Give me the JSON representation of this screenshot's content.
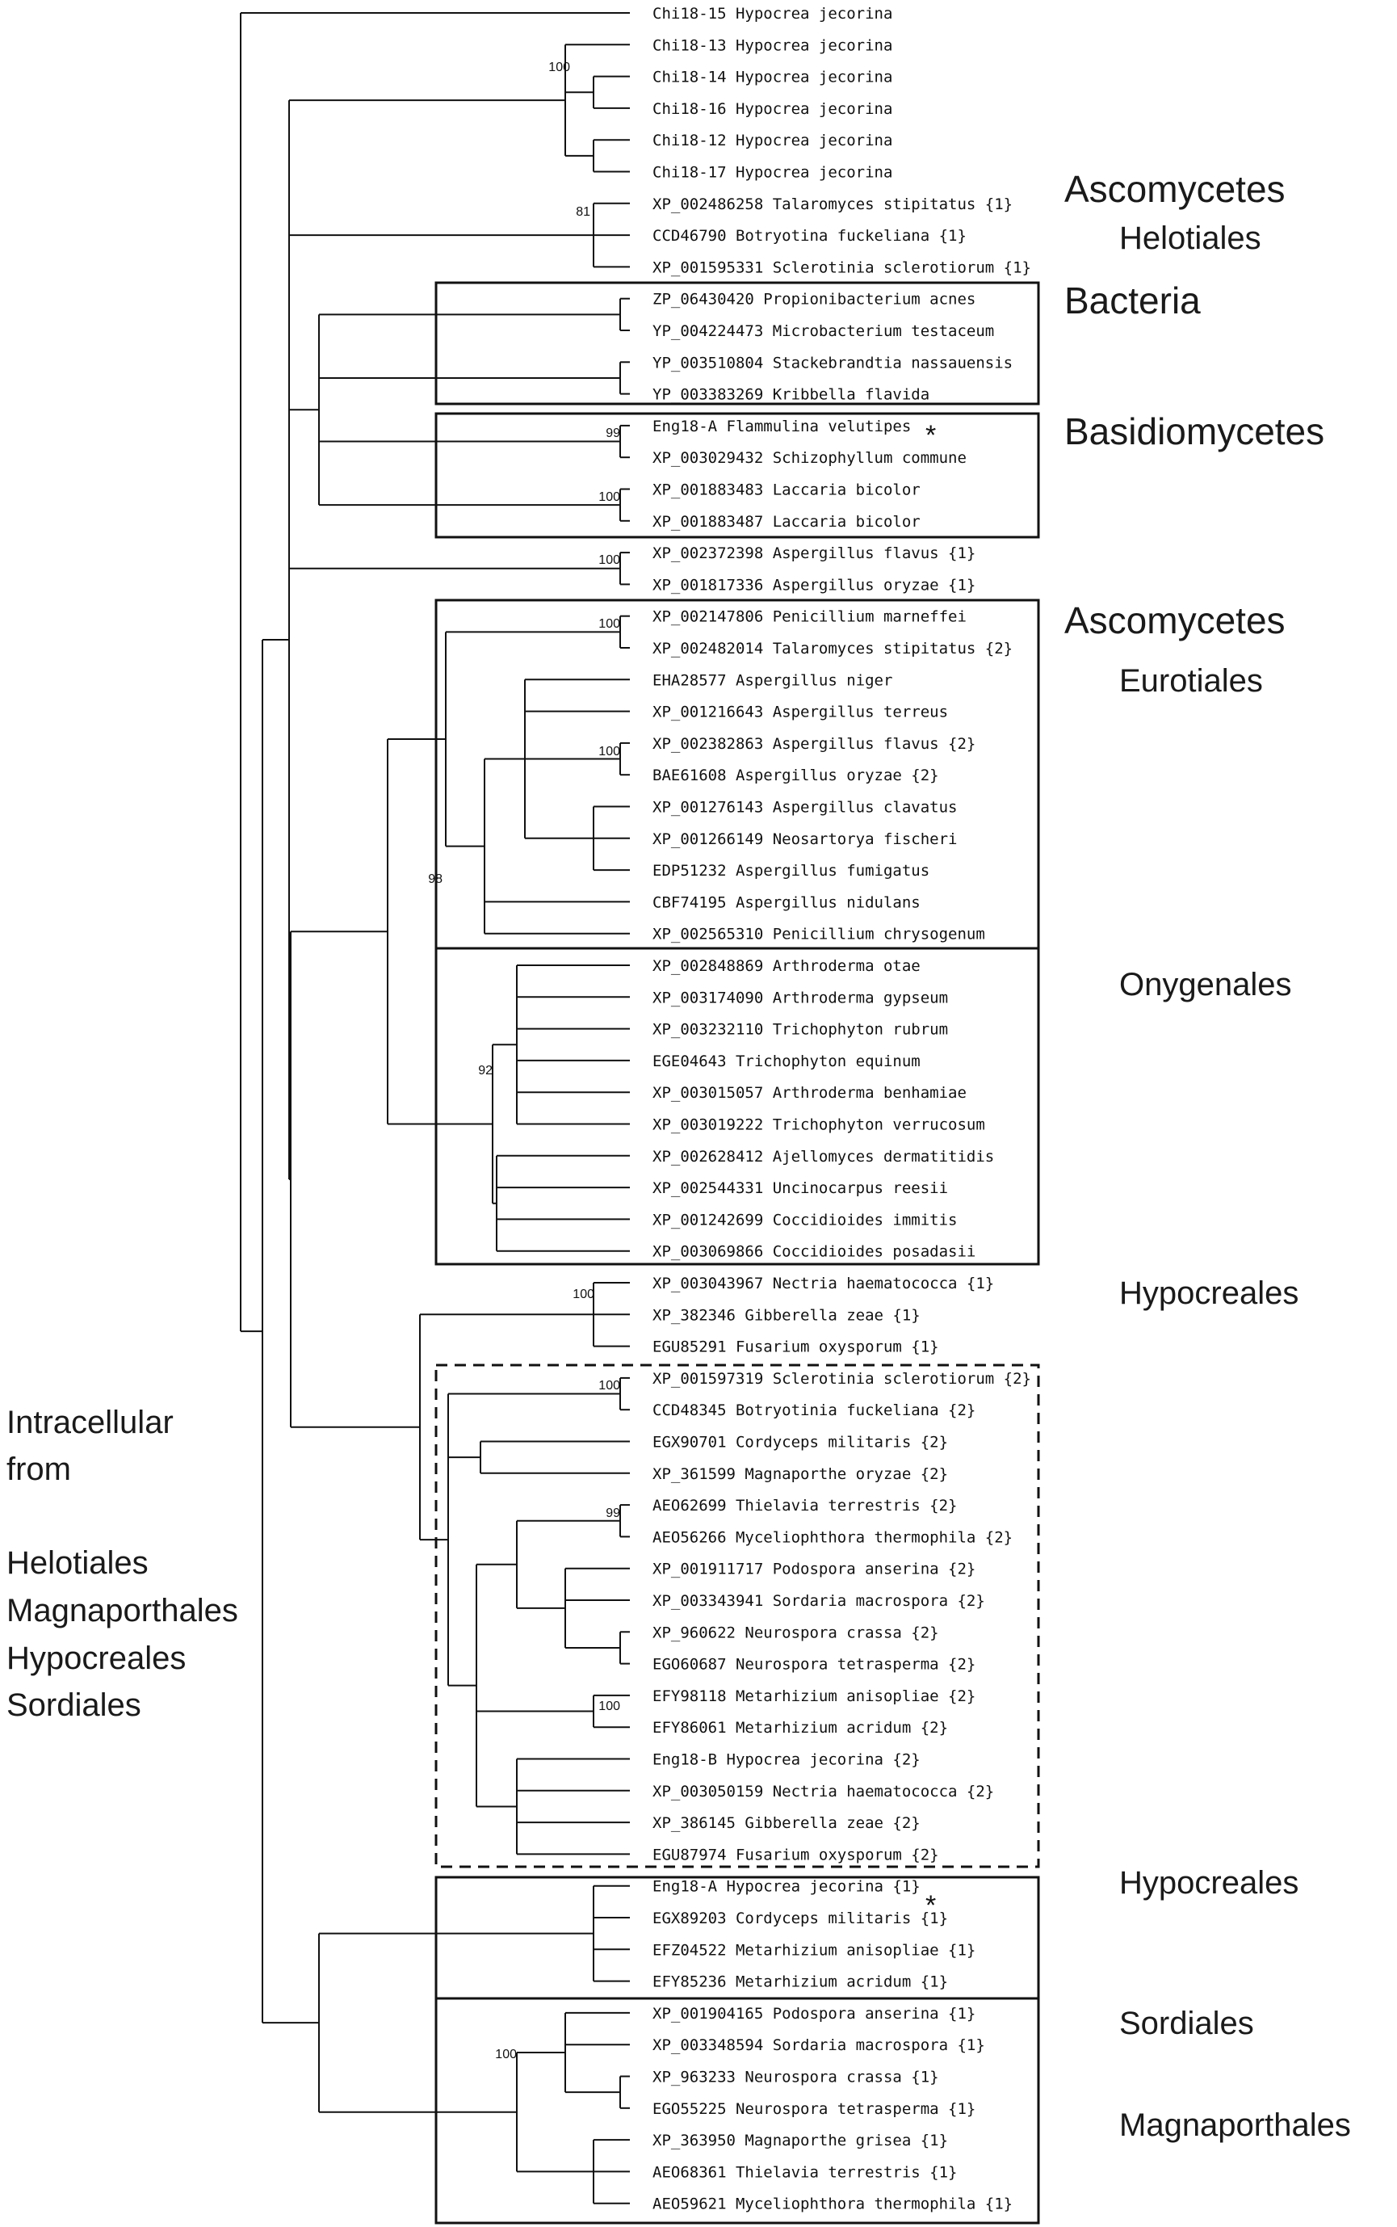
{
  "leaves": [
    "Chi18-15 Hypocrea jecorina",
    "Chi18-13 Hypocrea jecorina",
    "Chi18-14 Hypocrea jecorina",
    "Chi18-16 Hypocrea jecorina",
    "Chi18-12 Hypocrea jecorina",
    "Chi18-17 Hypocrea jecorina",
    "XP_002486258 Talaromyces stipitatus {1}",
    "CCD46790 Botryotina fuckeliana {1}",
    "XP_001595331 Sclerotinia sclerotiorum {1}",
    "ZP_06430420 Propionibacterium acnes",
    "YP_004224473 Microbacterium testaceum",
    "YP_003510804 Stackebrandtia nassauensis",
    "YP_003383269 Kribbella flavida",
    "Eng18-A Flammulina velutipes",
    "XP_003029432 Schizophyllum commune",
    "XP_001883483 Laccaria bicolor",
    "XP_001883487 Laccaria bicolor",
    "XP_002372398 Aspergillus flavus {1}",
    "XP_001817336 Aspergillus oryzae {1}",
    "XP_002147806 Penicillium marneffei",
    "XP_002482014 Talaromyces stipitatus {2}",
    "EHA28577 Aspergillus niger",
    "XP_001216643 Aspergillus terreus",
    "XP_002382863 Aspergillus flavus {2}",
    "BAE61608 Aspergillus oryzae {2}",
    "XP_001276143 Aspergillus clavatus",
    "XP_001266149 Neosartorya fischeri",
    "EDP51232 Aspergillus fumigatus",
    "CBF74195 Aspergillus nidulans",
    "XP_002565310 Penicillium chrysogenum",
    "XP_002848869 Arthroderma otae",
    "XP_003174090 Arthroderma gypseum",
    "XP_003232110 Trichophyton rubrum",
    "EGE04643 Trichophyton equinum",
    "XP_003015057 Arthroderma benhamiae",
    "XP_003019222 Trichophyton verrucosum",
    "XP_002628412 Ajellomyces dermatitidis",
    "XP_002544331 Uncinocarpus reesii",
    "XP_001242699 Coccidioides immitis",
    "XP_003069866 Coccidioides posadasii",
    "XP_003043967 Nectria haematococca {1}",
    "XP_382346 Gibberella zeae {1}",
    "EGU85291 Fusarium oxysporum {1}",
    "XP_001597319 Sclerotinia sclerotiorum {2}",
    "CCD48345 Botryotinia fuckeliana {2}",
    "EGX90701 Cordyceps militaris {2}",
    "XP_361599 Magnaporthe oryzae {2}",
    "AEO62699 Thielavia terrestris {2}",
    "AEO56266 Myceliophthora thermophila {2}",
    "XP_001911717 Podospora anserina {2}",
    "XP_003343941 Sordaria macrospora {2}",
    "XP_960622 Neurospora crassa {2}",
    "EGO60687 Neurospora tetrasperma {2}",
    "EFY98118 Metarhizium anisopliae {2}",
    "EFY86061 Metarhizium acridum {2}",
    "Eng18-B Hypocrea jecorina {2}",
    "XP_003050159 Nectria haematococca {2}",
    "XP_386145 Gibberella zeae {2}",
    "EGU87974 Fusarium oxysporum {2}",
    "Eng18-A Hypocrea jecorina {1}",
    "EGX89203 Cordyceps militaris {1}",
    "EFZ04522 Metarhizium anisopliae {1}",
    "EFY85236 Metarhizium acridum {1}",
    "XP_001904165 Podospora anserina {1}",
    "XP_003348594 Sordaria macrospora {1}",
    "XP_963233 Neurospora crassa {1}",
    "EGO55225 Neurospora tetrasperma {1}",
    "XP_363950 Magnaporthe grisea {1}",
    "AEO68361 Thielavia terrestris {1}",
    "AEO59621 Myceliophthora thermophila {1}"
  ],
  "bootstrap": {
    "chi18": "100",
    "helotiales": "81",
    "flammulina": "99",
    "laccaria": "100",
    "aspergillus1": "100",
    "penicillium": "100",
    "aspergillus2": "100",
    "eurotiomycetes": "98",
    "onygenales": "92",
    "nectria": "100",
    "sclerotinia2": "100",
    "thielavia": "99",
    "metarhizium2": "100",
    "intracellular": "100"
  },
  "asterisk": "*",
  "groups": {
    "ascomycetes": "Ascomycetes",
    "helotiales": "Helotiales",
    "bacteria": "Bacteria",
    "basidiomycetes": "Basidiomycetes",
    "ascomycetes2": "Ascomycetes",
    "eurotiales": "Eurotiales",
    "onygenales": "Onygenales",
    "hypocreales": "Hypocreales",
    "hypocreales2": "Hypocreales",
    "sordiales": "Sordiales",
    "magnaporthales": "Magnaporthales"
  },
  "side_note": [
    "Intracellular",
    "from",
    "",
    "Helotiales",
    "Magnaporthales",
    "Hypocreales",
    "Sordiales"
  ]
}
